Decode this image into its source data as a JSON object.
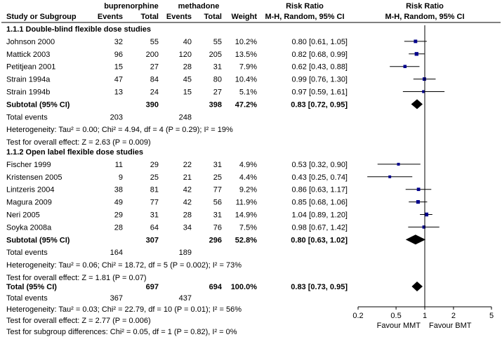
{
  "chart_data": {
    "type": "forest",
    "header": {
      "group_exp": "buprenorphine",
      "group_ctl": "methadone",
      "col_study": "Study or Subgroup",
      "col_events": "Events",
      "col_total": "Total",
      "col_weight": "Weight",
      "col_rr": "Risk Ratio",
      "col_rr_method": "M-H, Random, 95% CI",
      "plot_title": "Risk Ratio",
      "plot_method": "M-H, Random, 95% CI"
    },
    "subgroups": [
      {
        "title": "1.1.1 Double-blind flexible dose studies",
        "studies": [
          {
            "name": "Johnson 2000",
            "e_ev": "32",
            "e_tot": "55",
            "c_ev": "40",
            "c_tot": "55",
            "weight": "10.2%",
            "ci_text": "0.80 [0.61, 1.05]",
            "rr": 0.8,
            "lo": 0.61,
            "hi": 1.05
          },
          {
            "name": "Mattick 2003",
            "e_ev": "96",
            "e_tot": "200",
            "c_ev": "120",
            "c_tot": "205",
            "weight": "13.5%",
            "ci_text": "0.82 [0.68, 0.99]",
            "rr": 0.82,
            "lo": 0.68,
            "hi": 0.99
          },
          {
            "name": "Petitjean 2001",
            "e_ev": "15",
            "e_tot": "27",
            "c_ev": "28",
            "c_tot": "31",
            "weight": "7.9%",
            "ci_text": "0.62 [0.43, 0.88]",
            "rr": 0.62,
            "lo": 0.43,
            "hi": 0.88
          },
          {
            "name": "Strain 1994a",
            "e_ev": "47",
            "e_tot": "84",
            "c_ev": "45",
            "c_tot": "80",
            "weight": "10.4%",
            "ci_text": "0.99 [0.76, 1.30]",
            "rr": 0.99,
            "lo": 0.76,
            "hi": 1.3
          },
          {
            "name": "Strain 1994b",
            "e_ev": "13",
            "e_tot": "24",
            "c_ev": "15",
            "c_tot": "27",
            "weight": "5.1%",
            "ci_text": "0.97 [0.59, 1.61]",
            "rr": 0.97,
            "lo": 0.59,
            "hi": 1.61
          }
        ],
        "subtotal": {
          "label": "Subtotal (95% CI)",
          "e_tot": "390",
          "c_tot": "398",
          "weight": "47.2%",
          "ci_text": "0.83 [0.72, 0.95]",
          "rr": 0.83,
          "lo": 0.72,
          "hi": 0.95
        },
        "total_events": {
          "label": "Total events",
          "e": "203",
          "c": "248"
        },
        "heterogeneity": "Heterogeneity: Tau² = 0.00; Chi² = 4.94, df = 4 (P = 0.29); I² = 19%",
        "overall": "Test for overall effect: Z = 2.63 (P = 0.009)"
      },
      {
        "title": "1.1.2 Open label flexible dose studies",
        "studies": [
          {
            "name": "Fischer 1999",
            "e_ev": "11",
            "e_tot": "29",
            "c_ev": "22",
            "c_tot": "31",
            "weight": "4.9%",
            "ci_text": "0.53 [0.32, 0.90]",
            "rr": 0.53,
            "lo": 0.32,
            "hi": 0.9
          },
          {
            "name": "Kristensen 2005",
            "e_ev": "9",
            "e_tot": "25",
            "c_ev": "21",
            "c_tot": "25",
            "weight": "4.4%",
            "ci_text": "0.43 [0.25, 0.74]",
            "rr": 0.43,
            "lo": 0.25,
            "hi": 0.74
          },
          {
            "name": "Lintzeris 2004",
            "e_ev": "38",
            "e_tot": "81",
            "c_ev": "42",
            "c_tot": "77",
            "weight": "9.2%",
            "ci_text": "0.86 [0.63, 1.17]",
            "rr": 0.86,
            "lo": 0.63,
            "hi": 1.17
          },
          {
            "name": "Magura 2009",
            "e_ev": "49",
            "e_tot": "77",
            "c_ev": "42",
            "c_tot": "56",
            "weight": "11.9%",
            "ci_text": "0.85 [0.68, 1.06]",
            "rr": 0.85,
            "lo": 0.68,
            "hi": 1.06
          },
          {
            "name": "Neri 2005",
            "e_ev": "29",
            "e_tot": "31",
            "c_ev": "28",
            "c_tot": "31",
            "weight": "14.9%",
            "ci_text": "1.04 [0.89, 1.20]",
            "rr": 1.04,
            "lo": 0.89,
            "hi": 1.2
          },
          {
            "name": "Soyka 2008a",
            "e_ev": "28",
            "e_tot": "64",
            "c_ev": "34",
            "c_tot": "76",
            "weight": "7.5%",
            "ci_text": "0.98 [0.67, 1.42]",
            "rr": 0.98,
            "lo": 0.67,
            "hi": 1.42
          }
        ],
        "subtotal": {
          "label": "Subtotal (95% CI)",
          "e_tot": "307",
          "c_tot": "296",
          "weight": "52.8%",
          "ci_text": "0.80 [0.63, 1.02]",
          "rr": 0.8,
          "lo": 0.63,
          "hi": 1.02
        },
        "total_events": {
          "label": "Total events",
          "e": "164",
          "c": "189"
        },
        "heterogeneity": "Heterogeneity: Tau² = 0.06; Chi² = 18.72, df = 5 (P = 0.002); I² = 73%",
        "overall": "Test for overall effect: Z = 1.81 (P = 0.07)"
      }
    ],
    "total": {
      "label": "Total (95% CI)",
      "e_tot": "697",
      "c_tot": "694",
      "weight": "100.0%",
      "ci_text": "0.83 [0.73, 0.95]",
      "rr": 0.83,
      "lo": 0.73,
      "hi": 0.95
    },
    "total_events": {
      "label": "Total events",
      "e": "367",
      "c": "437"
    },
    "heterogeneity": "Heterogeneity: Tau² = 0.03; Chi² = 22.79, df = 10 (P = 0.01); I² = 56%",
    "overall": "Test for overall effect: Z = 2.77 (P = 0.006)",
    "subgroup_diff": "Test for subgroup differences: Chi² = 0.05, df = 1 (P = 0.82), I² = 0%",
    "axis": {
      "scale": "log",
      "ticks": [
        0.2,
        0.5,
        1,
        2,
        5
      ],
      "tick_labels": [
        "0.2",
        "0.5",
        "1",
        "2",
        "5"
      ],
      "xlim": [
        0.2,
        5
      ],
      "null_value": 1,
      "favours_left": "Favour MMT",
      "favours_right": "Favour BMT"
    },
    "colors": {
      "marker": "#00008b",
      "line": "#000000",
      "diamond": "#000000"
    }
  }
}
